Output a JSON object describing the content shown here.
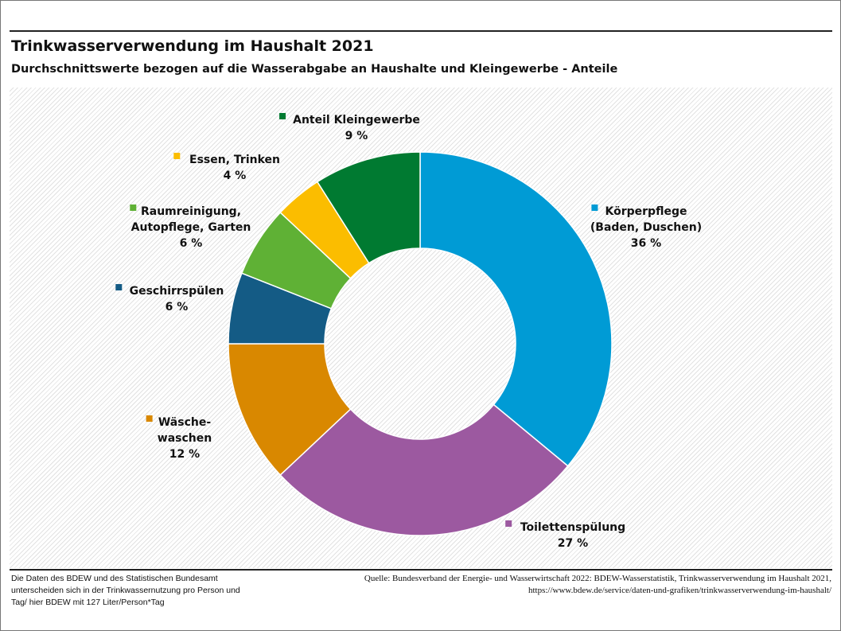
{
  "chart_data": {
    "type": "pie",
    "donut": true,
    "title": "Trinkwasserverwendung im Haushalt 2021",
    "subtitle": "Durchschnittswerte bezogen auf die Wasserabgabe an Haushalte und Kleingewerbe - Anteile",
    "unit": "%",
    "slices": [
      {
        "name": [
          "Körperpflege",
          "(Baden, Duschen)"
        ],
        "value": 36,
        "label": "36 %",
        "color": "#009bd5"
      },
      {
        "name": [
          "Toilettenspülung"
        ],
        "value": 27,
        "label": "27 %",
        "color": "#9c59a0"
      },
      {
        "name": [
          "Wäsche-",
          "waschen"
        ],
        "value": 12,
        "label": "12 %",
        "color": "#d98800"
      },
      {
        "name": [
          "Geschirrspülen"
        ],
        "value": 6,
        "label": "6 %",
        "color": "#145b85"
      },
      {
        "name": [
          "Raumreinigung,",
          "Autopflege, Garten"
        ],
        "value": 6,
        "label": "6 %",
        "color": "#5fb135"
      },
      {
        "name": [
          "Essen, Trinken"
        ],
        "value": 4,
        "label": "4 %",
        "color": "#fbbd00"
      },
      {
        "name": [
          "Anteil Kleingewerbe"
        ],
        "value": 9,
        "label": "9 %",
        "color": "#007a31"
      }
    ]
  },
  "footer": {
    "note": "Die Daten des BDEW und des Statistischen Bundesamt unterscheiden sich in der Trinkwassernutzung pro Person und Tag/ hier BDEW mit 127 Liter/Person*Tag",
    "source_line1": "Quelle: Bundesverband der Energie- und Wasserwirtschaft 2022: BDEW-Wasserstatistik, Trinkwasserverwendung im Haushalt 2021,",
    "source_line2": "https://www.bdew.de/service/daten-und-grafiken/trinkwasserverwendung-im-haushalt/"
  }
}
